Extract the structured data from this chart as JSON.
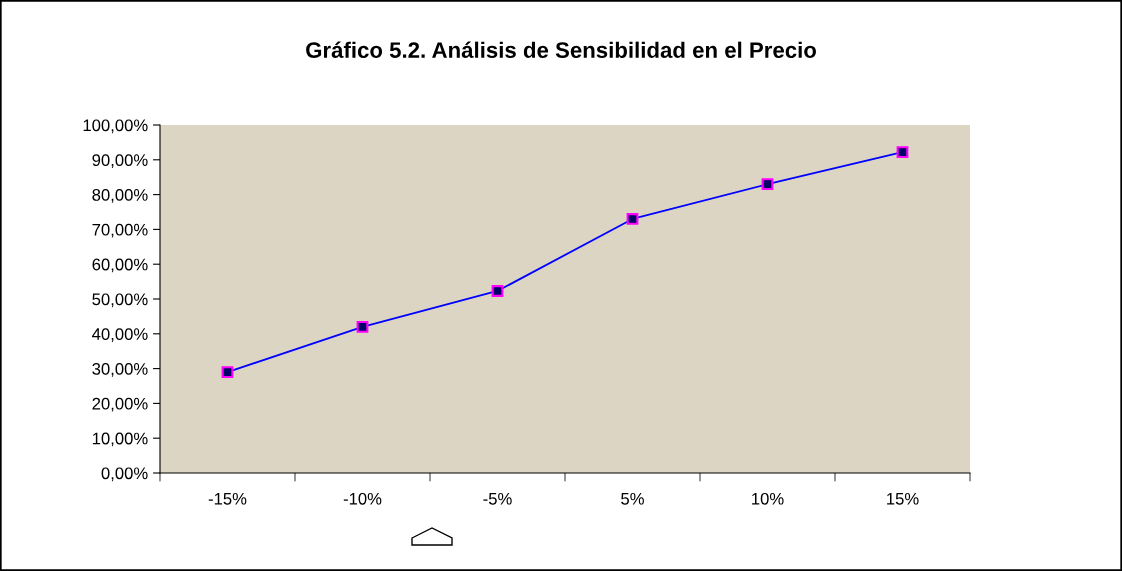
{
  "chart_data": {
    "type": "line",
    "title": "Gráfico 5.2. Análisis de Sensibilidad en el Precio",
    "categories": [
      "-15%",
      "-10%",
      "-5%",
      "5%",
      "10%",
      "15%"
    ],
    "series": [
      {
        "color": "#0000ff",
        "values": [
          29.0,
          42.0,
          52.3,
          73.0,
          83.0,
          92.2
        ]
      }
    ],
    "ylim": [
      0,
      100
    ],
    "yticks": [
      {
        "value": 0,
        "label": "0,00%"
      },
      {
        "value": 10,
        "label": "10,00%"
      },
      {
        "value": 20,
        "label": "20,00%"
      },
      {
        "value": 30,
        "label": "30,00%"
      },
      {
        "value": 40,
        "label": "40,00%"
      },
      {
        "value": 50,
        "label": "50,00%"
      },
      {
        "value": 60,
        "label": "60,00%"
      },
      {
        "value": 70,
        "label": "70,00%"
      },
      {
        "value": 80,
        "label": "80,00%"
      },
      {
        "value": 90,
        "label": "90,00%"
      },
      {
        "value": 100,
        "label": "100,00%"
      }
    ],
    "marker": "square",
    "line_style": "solid",
    "grid": false,
    "legend": false
  }
}
